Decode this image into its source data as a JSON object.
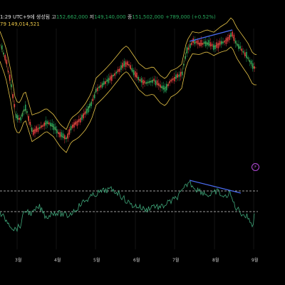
{
  "header": {
    "timestamp": "1:29 UTC+9에 생성됨",
    "high_label": "고",
    "high_value": "152,662,000",
    "low_label": "저",
    "low_value": "149,140,000",
    "close_label": "종",
    "close_value": "151,502,000",
    "change": "+789,000 (+0.52%)",
    "ma_period": "79",
    "ma_value": "149,014,521"
  },
  "x_axis": {
    "labels": [
      "3월",
      "4월",
      "5월",
      "6월",
      "7월",
      "8월",
      "9월"
    ]
  },
  "icons": {
    "mark": "lightning-icon",
    "mark_glyph": "⚡"
  },
  "colors": {
    "background": "#000000",
    "up": "#26a65b",
    "down": "#e0393e",
    "band": "#e8c547",
    "rsi": "#3fa77a",
    "trendline": "#4a6cf0",
    "guide": "#d0d0d0",
    "grid": "#2a2a2a"
  }
}
